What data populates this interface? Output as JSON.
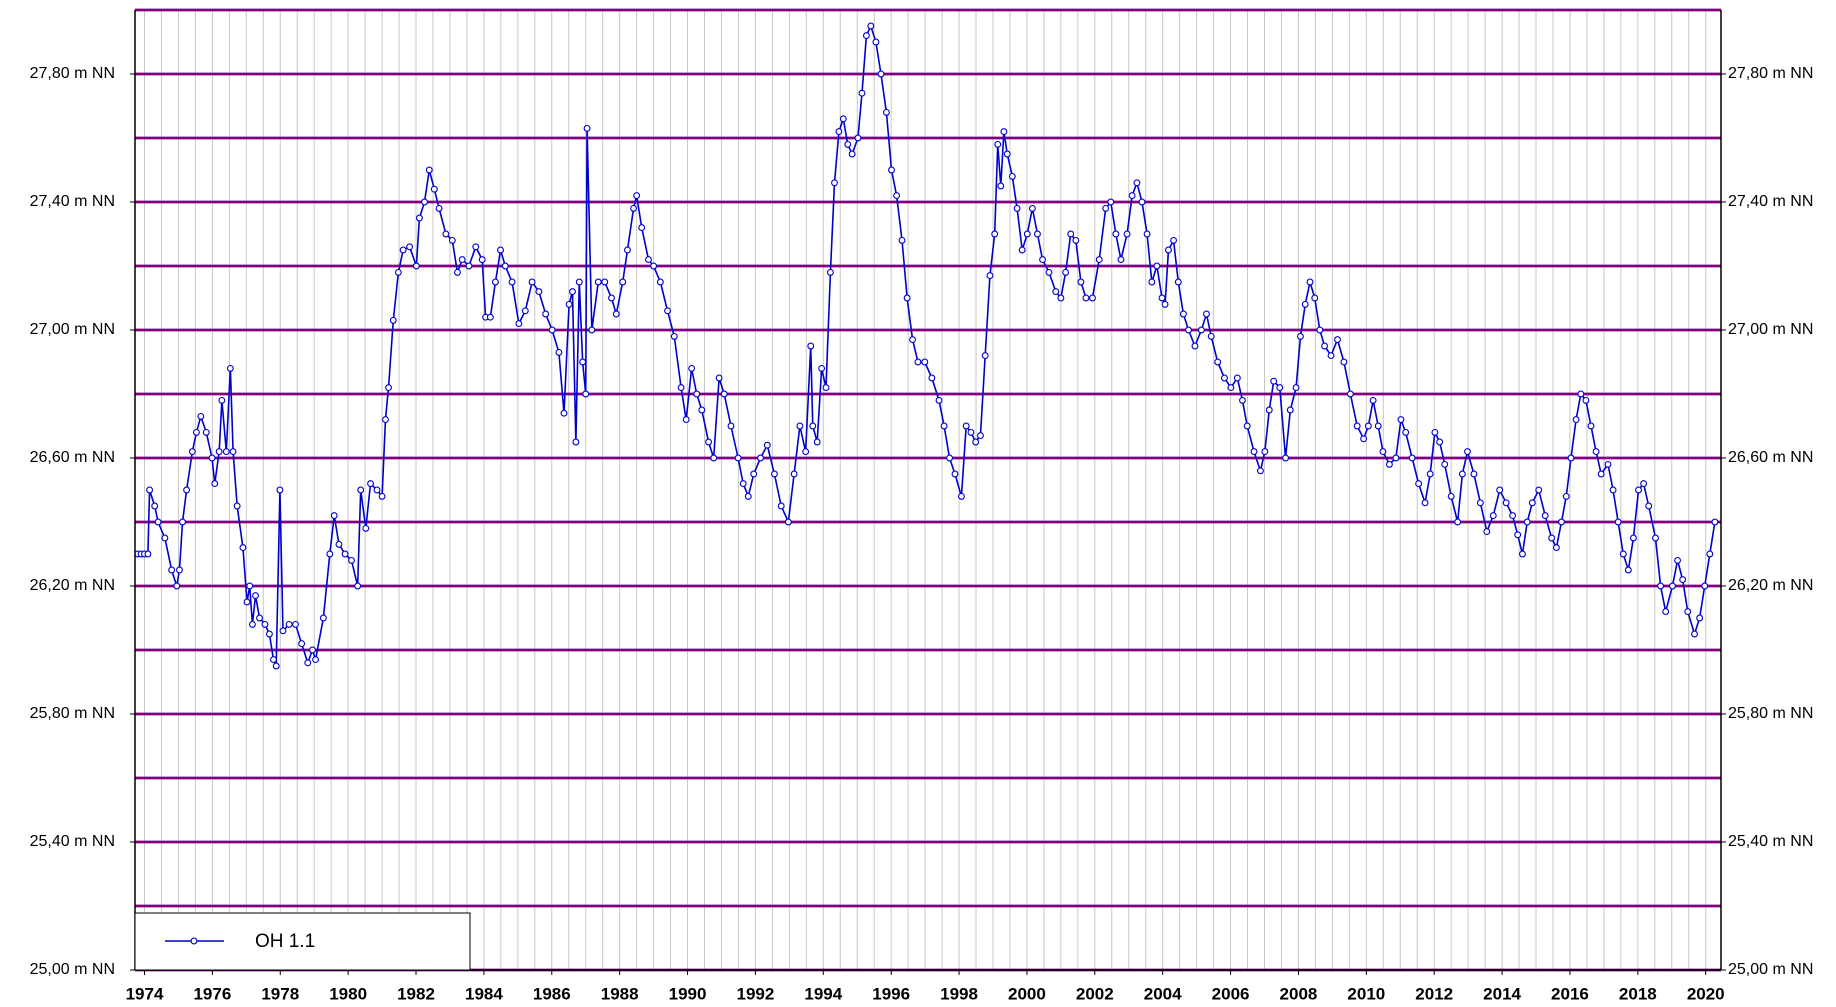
{
  "chart_data": {
    "type": "line",
    "series": [
      {
        "name": "OH 1.1",
        "color": "#0000cc",
        "x": [
          1973.8,
          1973.9,
          1974.0,
          1974.1,
          1974.15,
          1974.3,
          1974.4,
          1974.6,
          1974.8,
          1974.95,
          1975.03,
          1975.12,
          1975.24,
          1975.41,
          1975.53,
          1975.66,
          1975.82,
          1975.99,
          1976.07,
          1976.2,
          1976.28,
          1976.41,
          1976.53,
          1976.61,
          1976.73,
          1976.9,
          1977.02,
          1977.1,
          1977.18,
          1977.27,
          1977.39,
          1977.55,
          1977.68,
          1977.8,
          1977.88,
          1977.99,
          1978.08,
          1978.26,
          1978.45,
          1978.63,
          1978.81,
          1978.95,
          1979.04,
          1979.27,
          1979.46,
          1979.59,
          1979.73,
          1979.91,
          1980.1,
          1980.28,
          1980.37,
          1980.52,
          1980.66,
          1980.85,
          1981.0,
          1981.1,
          1981.19,
          1981.33,
          1981.48,
          1981.62,
          1981.81,
          1982.01,
          1982.1,
          1982.25,
          1982.39,
          1982.54,
          1982.68,
          1982.88,
          1983.07,
          1983.22,
          1983.36,
          1983.56,
          1983.76,
          1983.95,
          1984.05,
          1984.19,
          1984.34,
          1984.49,
          1984.63,
          1984.83,
          1985.03,
          1985.22,
          1985.42,
          1985.62,
          1985.82,
          1986.01,
          1986.21,
          1986.36,
          1986.51,
          1986.61,
          1986.71,
          1986.81,
          1986.91,
          1987.0,
          1987.04,
          1987.18,
          1987.37,
          1987.56,
          1987.76,
          1987.9,
          1988.09,
          1988.23,
          1988.41,
          1988.5,
          1988.65,
          1988.85,
          1989.0,
          1989.2,
          1989.41,
          1989.61,
          1989.81,
          1989.96,
          1990.12,
          1990.27,
          1990.42,
          1990.62,
          1990.77,
          1990.93,
          1991.08,
          1991.28,
          1991.49,
          1991.64,
          1991.79,
          1991.95,
          1992.15,
          1992.35,
          1992.56,
          1992.76,
          1992.97,
          1993.14,
          1993.31,
          1993.48,
          1993.63,
          1993.69,
          1993.82,
          1993.95,
          1994.08,
          1994.21,
          1994.33,
          1994.46,
          1994.59,
          1994.72,
          1994.85,
          1995.02,
          1995.14,
          1995.27,
          1995.4,
          1995.55,
          1995.7,
          1995.86,
          1996.01,
          1996.16,
          1996.32,
          1996.47,
          1996.63,
          1996.79,
          1996.99,
          1997.2,
          1997.41,
          1997.56,
          1997.72,
          1997.88,
          1998.07,
          1998.21,
          1998.35,
          1998.49,
          1998.63,
          1998.77,
          1998.91,
          1999.05,
          1999.14,
          1999.23,
          1999.32,
          1999.42,
          1999.57,
          1999.71,
          1999.86,
          2000.01,
          2000.16,
          2000.31,
          2000.46,
          2000.65,
          2000.85,
          2001.0,
          2001.14,
          2001.29,
          2001.44,
          2001.59,
          2001.74,
          2001.93,
          2002.13,
          2002.32,
          2002.47,
          2002.62,
          2002.77,
          2002.95,
          2003.1,
          2003.24,
          2003.39,
          2003.54,
          2003.68,
          2003.83,
          2003.98,
          2004.07,
          2004.17,
          2004.32,
          2004.46,
          2004.61,
          2004.76,
          2004.95,
          2005.14,
          2005.29,
          2005.43,
          2005.62,
          2005.82,
          2006.01,
          2006.2,
          2006.35,
          2006.49,
          2006.69,
          2006.88,
          2007.01,
          2007.14,
          2007.27,
          2007.45,
          2007.62,
          2007.76,
          2007.93,
          2008.06,
          2008.2,
          2008.34,
          2008.48,
          2008.63,
          2008.77,
          2008.96,
          2009.15,
          2009.34,
          2009.53,
          2009.73,
          2009.92,
          2010.06,
          2010.2,
          2010.35,
          2010.49,
          2010.68,
          2010.87,
          2011.02,
          2011.16,
          2011.35,
          2011.54,
          2011.73,
          2011.88,
          2012.02,
          2012.16,
          2012.31,
          2012.5,
          2012.69,
          2012.83,
          2012.98,
          2013.17,
          2013.36,
          2013.55,
          2013.74,
          2013.93,
          2014.12,
          2014.31,
          2014.46,
          2014.6,
          2014.74,
          2014.89,
          2015.08,
          2015.27,
          2015.46,
          2015.6,
          2015.75,
          2015.89,
          2016.03,
          2016.18,
          2016.32,
          2016.47,
          2016.62,
          2016.77,
          2016.92,
          2017.12,
          2017.27,
          2017.42,
          2017.57,
          2017.72,
          2017.87,
          2018.02,
          2018.17,
          2018.32,
          2018.52,
          2018.67,
          2018.82,
          2019.02,
          2019.17,
          2019.32,
          2019.47,
          2019.67,
          2019.82,
          2019.97,
          2020.12,
          2020.27
        ],
        "values": [
          26.3,
          26.3,
          26.3,
          26.3,
          26.5,
          26.45,
          26.4,
          26.35,
          26.25,
          26.2,
          26.25,
          26.4,
          26.5,
          26.62,
          26.68,
          26.73,
          26.68,
          26.6,
          26.52,
          26.62,
          26.78,
          26.62,
          26.88,
          26.62,
          26.45,
          26.32,
          26.15,
          26.2,
          26.08,
          26.17,
          26.1,
          26.08,
          26.05,
          25.97,
          25.95,
          26.5,
          26.06,
          26.08,
          26.08,
          26.02,
          25.96,
          26.0,
          25.97,
          26.1,
          26.3,
          26.42,
          26.33,
          26.3,
          26.28,
          26.2,
          26.5,
          26.38,
          26.52,
          26.5,
          26.48,
          26.72,
          26.82,
          27.03,
          27.18,
          27.25,
          27.26,
          27.2,
          27.35,
          27.4,
          27.5,
          27.44,
          27.38,
          27.3,
          27.28,
          27.18,
          27.22,
          27.2,
          27.26,
          27.22,
          27.04,
          27.04,
          27.15,
          27.25,
          27.2,
          27.15,
          27.02,
          27.06,
          27.15,
          27.12,
          27.05,
          27.0,
          26.93,
          26.74,
          27.08,
          27.12,
          26.65,
          27.15,
          26.9,
          26.8,
          27.63,
          27.0,
          27.15,
          27.15,
          27.1,
          27.05,
          27.15,
          27.25,
          27.38,
          27.42,
          27.32,
          27.22,
          27.2,
          27.15,
          27.06,
          26.98,
          26.82,
          26.72,
          26.88,
          26.8,
          26.75,
          26.65,
          26.6,
          26.85,
          26.8,
          26.7,
          26.6,
          26.52,
          26.48,
          26.55,
          26.6,
          26.64,
          26.55,
          26.45,
          26.4,
          26.55,
          26.7,
          26.62,
          26.95,
          26.7,
          26.65,
          26.88,
          26.82,
          27.18,
          27.46,
          27.62,
          27.66,
          27.58,
          27.55,
          27.6,
          27.74,
          27.92,
          27.95,
          27.9,
          27.8,
          27.68,
          27.5,
          27.42,
          27.28,
          27.1,
          26.97,
          26.9,
          26.9,
          26.85,
          26.78,
          26.7,
          26.6,
          26.55,
          26.48,
          26.7,
          26.68,
          26.65,
          26.67,
          26.92,
          27.17,
          27.3,
          27.58,
          27.45,
          27.62,
          27.55,
          27.48,
          27.38,
          27.25,
          27.3,
          27.38,
          27.3,
          27.22,
          27.18,
          27.12,
          27.1,
          27.18,
          27.3,
          27.28,
          27.15,
          27.1,
          27.1,
          27.22,
          27.38,
          27.4,
          27.3,
          27.22,
          27.3,
          27.42,
          27.46,
          27.4,
          27.3,
          27.15,
          27.2,
          27.1,
          27.08,
          27.25,
          27.28,
          27.15,
          27.05,
          27.0,
          26.95,
          27.0,
          27.05,
          26.98,
          26.9,
          26.85,
          26.82,
          26.85,
          26.78,
          26.7,
          26.62,
          26.56,
          26.62,
          26.75,
          26.84,
          26.82,
          26.6,
          26.75,
          26.82,
          26.98,
          27.08,
          27.15,
          27.1,
          27.0,
          26.95,
          26.92,
          26.97,
          26.9,
          26.8,
          26.7,
          26.66,
          26.7,
          26.78,
          26.7,
          26.62,
          26.58,
          26.6,
          26.72,
          26.68,
          26.6,
          26.52,
          26.46,
          26.55,
          26.68,
          26.65,
          26.58,
          26.48,
          26.4,
          26.55,
          26.62,
          26.55,
          26.46,
          26.37,
          26.42,
          26.5,
          26.46,
          26.42,
          26.36,
          26.3,
          26.4,
          26.46,
          26.5,
          26.42,
          26.35,
          26.32,
          26.4,
          26.48,
          26.6,
          26.72,
          26.8,
          26.78,
          26.7,
          26.62,
          26.55,
          26.58,
          26.5,
          26.4,
          26.3,
          26.25,
          26.35,
          26.5,
          26.52,
          26.45,
          26.35,
          26.2,
          26.12,
          26.2,
          26.28,
          26.22,
          26.12,
          26.05,
          26.1,
          26.2,
          26.3,
          26.4
        ]
      }
    ],
    "xlim": [
      1973.72,
      2020.45
    ],
    "xticks": [
      1974,
      1976,
      1978,
      1980,
      1982,
      1984,
      1986,
      1988,
      1990,
      1992,
      1994,
      1996,
      1998,
      2000,
      2002,
      2004,
      2006,
      2008,
      2010,
      2012,
      2014,
      2016,
      2018,
      2020
    ],
    "minor_xticks": [
      1974,
      1974.5,
      1975,
      1975.5,
      1976,
      1976.5,
      1977,
      1977.5,
      1978,
      1978.5,
      1979,
      1979.5,
      1980,
      1980.5,
      1981,
      1981.5,
      1982,
      1982.5,
      1983,
      1983.5,
      1984,
      1984.5,
      1985,
      1985.5,
      1986,
      1986.5,
      1987,
      1987.5,
      1988,
      1988.5,
      1989,
      1989.5,
      1990,
      1990.5,
      1991,
      1991.5,
      1992,
      1992.5,
      1993,
      1993.5,
      1994,
      1994.5,
      1995,
      1995.5,
      1996,
      1996.5,
      1997,
      1997.5,
      1998,
      1998.5,
      1999,
      1999.5,
      2000,
      2000.5,
      2001,
      2001.5,
      2002,
      2002.5,
      2003,
      2003.5,
      2004,
      2004.5,
      2005,
      2005.5,
      2006,
      2006.5,
      2007,
      2007.5,
      2008,
      2008.5,
      2009,
      2009.5,
      2010,
      2010.5,
      2011,
      2011.5,
      2012,
      2012.5,
      2013,
      2013.5,
      2014,
      2014.5,
      2015,
      2015.5,
      2016,
      2016.5,
      2017,
      2017.5,
      2018,
      2018.5,
      2019,
      2019.5,
      2020
    ],
    "ylim": [
      25,
      28
    ],
    "yticks": [
      {
        "value": 25,
        "label": "25,00 m NN"
      },
      {
        "value": 25.4,
        "label": "25,40 m NN"
      },
      {
        "value": 25.8,
        "label": "25,80 m NN"
      },
      {
        "value": 26.2,
        "label": "26,20 m NN"
      },
      {
        "value": 26.6,
        "label": "26,60 m NN"
      },
      {
        "value": 27,
        "label": "27,00 m NN"
      },
      {
        "value": 27.4,
        "label": "27,40 m NN"
      },
      {
        "value": 27.8,
        "label": "27,80 m NN"
      }
    ],
    "minor_yticks": [
      25.2,
      25.6,
      26,
      26.4,
      26.8,
      27.2,
      27.6,
      28
    ],
    "grid": true,
    "grid_color": "#800080",
    "minor_grid_color": "#c8c8c8",
    "legend": "bottom-left"
  }
}
